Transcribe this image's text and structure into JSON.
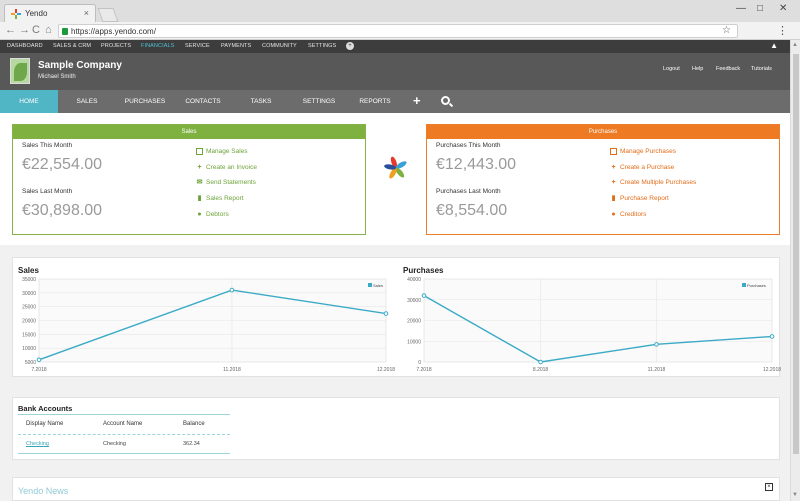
{
  "browser": {
    "tab_title": "Yendo",
    "tab_close": "×",
    "url": "https://apps.yendo.com/",
    "back": "←",
    "forward": "→",
    "reload": "C",
    "home": "⌂",
    "bookmark": "☆",
    "menu": "⋮",
    "minimize": "—",
    "maximize": "□",
    "close": "✕"
  },
  "topnav": {
    "items": [
      "DASHBOARD",
      "SALES & CRM",
      "PROJECTS",
      "FINANCIALS",
      "SERVICE",
      "PAYMENTS",
      "COMMUNITY",
      "SETTINGS"
    ],
    "active_index": 3,
    "more": "+",
    "collapse": "▲"
  },
  "company": {
    "name": "Sample Company",
    "user": "Michael Smith",
    "links": [
      "Logout",
      "Help",
      "Feedback",
      "Tutorials"
    ]
  },
  "mainmenu": {
    "items": [
      "HOME",
      "SALES",
      "PURCHASES",
      "CONTACTS",
      "TASKS",
      "SETTINGS",
      "REPORTS"
    ],
    "active_index": 0,
    "plus": "+"
  },
  "sales_panel": {
    "title": "Sales",
    "this_month_label": "Sales This Month",
    "this_month_value": "€22,554.00",
    "last_month_label": "Sales Last Month",
    "last_month_value": "€30,898.00",
    "actions": [
      "Manage Sales",
      "Create an Invoice",
      "Send Statements",
      "Sales Report",
      "Debtors"
    ],
    "color": "#7eb140"
  },
  "purchases_panel": {
    "title": "Purchases",
    "this_month_label": "Purchases This Month",
    "this_month_value": "€12,443.00",
    "last_month_label": "Purchases Last Month",
    "last_month_value": "€8,554.00",
    "actions": [
      "Manage Purchases",
      "Create a Purchase",
      "Create Multiple Purchases",
      "Purchase Report",
      "Creditors"
    ],
    "color": "#ee7a23"
  },
  "chart_data": [
    {
      "type": "line",
      "title": "Sales",
      "x": [
        "7.2018",
        "11.2018",
        "12.2018"
      ],
      "x_ticks": [
        "7.2018",
        "11.2018",
        "12.2018"
      ],
      "series": [
        {
          "name": "Sales",
          "values": [
            5800,
            31000,
            22500
          ]
        }
      ],
      "yticks": [
        5000,
        10000,
        15000,
        20000,
        25000,
        30000,
        35000
      ],
      "ylim": [
        5000,
        35000
      ],
      "legend": "top-right",
      "grid": true,
      "color": "#3aaac6"
    },
    {
      "type": "line",
      "title": "Purchases",
      "x": [
        "7.2018",
        "8.2018",
        "11.2018",
        "12.2018"
      ],
      "x_ticks": [
        "7.2018",
        "8.2018",
        "11.2018",
        "12.2018"
      ],
      "series": [
        {
          "name": "Purchases",
          "values": [
            32000,
            0,
            8500,
            12300
          ]
        }
      ],
      "yticks": [
        0,
        10000,
        20000,
        30000,
        40000
      ],
      "ylim": [
        0,
        40000
      ],
      "legend": "top-right",
      "grid": true,
      "color": "#3aaac6"
    }
  ],
  "bank": {
    "title": "Bank Accounts",
    "headers": [
      "Display Name",
      "Account Name",
      "Balance"
    ],
    "rows": [
      {
        "display": "Checking",
        "account": "Checking",
        "balance": "362.34"
      }
    ]
  },
  "news": {
    "title": "Yendo News",
    "close": "×"
  }
}
